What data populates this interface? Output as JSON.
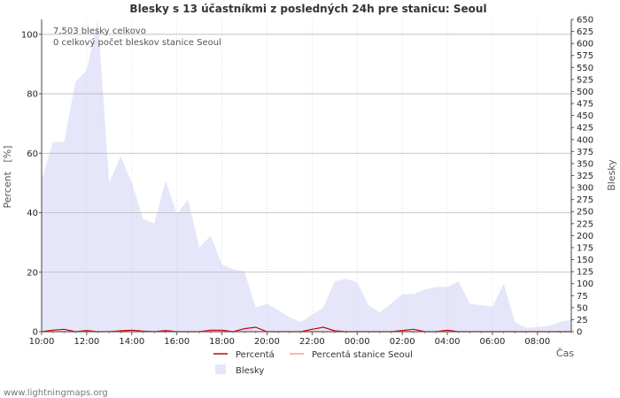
{
  "chart_data": {
    "type": "area",
    "title": "Blesky s 13 účastníkmi z posledných 24h pre stanicu: Seoul",
    "xlabel": "Čas",
    "ylabel_left": "Percent   [%]",
    "ylabel_right": "Blesky",
    "ylim_left": [
      0,
      105
    ],
    "ylim_right": [
      0,
      650
    ],
    "yticks_left": [
      0,
      20,
      40,
      60,
      80,
      100
    ],
    "yticks_right": [
      0,
      25,
      50,
      75,
      100,
      125,
      150,
      175,
      200,
      225,
      250,
      275,
      300,
      325,
      350,
      375,
      400,
      425,
      450,
      475,
      500,
      525,
      550,
      575,
      600,
      625,
      650
    ],
    "x_tick_labels": [
      "10:00",
      "12:00",
      "14:00",
      "16:00",
      "18:00",
      "20:00",
      "22:00",
      "00:00",
      "02:00",
      "04:00",
      "06:00",
      "08:00"
    ],
    "x_start_hour": 10,
    "x_span_hours": 23.5,
    "annotations": [
      "7,503 blesky celkovo",
      "0 celkový počet bleskov stanice Seoul"
    ],
    "series": [
      {
        "name": "Blesky",
        "axis": "right",
        "color": "#e6e6fa",
        "x": [
          0,
          0.5,
          1,
          1.5,
          2,
          2.5,
          3,
          3.5,
          4,
          4.5,
          5,
          5.5,
          6,
          6.5,
          7,
          7.5,
          8,
          8.5,
          9,
          9.5,
          10,
          10.5,
          11,
          11.5,
          12,
          12.5,
          13,
          13.5,
          14,
          14.5,
          15,
          15.5,
          16,
          16.5,
          17,
          17.5,
          18,
          18.5,
          19,
          19.5,
          20,
          20.5,
          21,
          21.5,
          22,
          22.5,
          23,
          23.5
        ],
        "values": [
          315,
          395,
          395,
          520,
          545,
          650,
          310,
          365,
          310,
          235,
          225,
          315,
          245,
          275,
          175,
          200,
          140,
          130,
          125,
          50,
          58,
          45,
          30,
          20,
          35,
          50,
          105,
          110,
          103,
          55,
          40,
          58,
          78,
          78,
          88,
          93,
          93,
          105,
          58,
          55,
          52,
          100,
          20,
          8,
          10,
          12,
          20,
          25
        ]
      },
      {
        "name": "Percentá",
        "axis": "left",
        "color": "#cc0000",
        "x": [
          0,
          0.5,
          1,
          1.5,
          2,
          2.5,
          3,
          3.5,
          4,
          4.5,
          5,
          5.5,
          6,
          6.5,
          7,
          7.5,
          8,
          8.5,
          9,
          9.5,
          10,
          10.5,
          11,
          11.5,
          12,
          12.5,
          13,
          13.5,
          14,
          14.5,
          15,
          15.5,
          16,
          16.5,
          17,
          17.5,
          18,
          18.5,
          19,
          19.5,
          20,
          20.5,
          21,
          21.5,
          22,
          22.5,
          23,
          23.5
        ],
        "values": [
          0,
          0.5,
          0.8,
          0,
          0.4,
          0,
          0,
          0.3,
          0.5,
          0.2,
          0,
          0.4,
          0,
          0,
          0,
          0.5,
          0.5,
          0,
          1,
          1.5,
          0,
          0,
          0,
          0,
          0.8,
          1.5,
          0.3,
          0,
          0,
          0,
          0,
          0,
          0.4,
          0.8,
          0,
          0,
          0.5,
          0,
          0,
          0,
          0,
          0,
          0,
          0,
          0,
          0,
          0,
          0
        ]
      },
      {
        "name": "Percentá stanice Seoul",
        "axis": "left",
        "color": "#ff9999",
        "x": [
          0,
          23.5
        ],
        "values": [
          0,
          0
        ]
      }
    ],
    "legend": [
      {
        "label": "Percentá",
        "kind": "line",
        "color": "#cc0000"
      },
      {
        "label": "Percentá stanice Seoul",
        "kind": "line",
        "color": "#ff9999"
      },
      {
        "label": "Blesky",
        "kind": "box",
        "color": "#e6e6fa"
      }
    ]
  },
  "footer": "www.lightningmaps.org"
}
